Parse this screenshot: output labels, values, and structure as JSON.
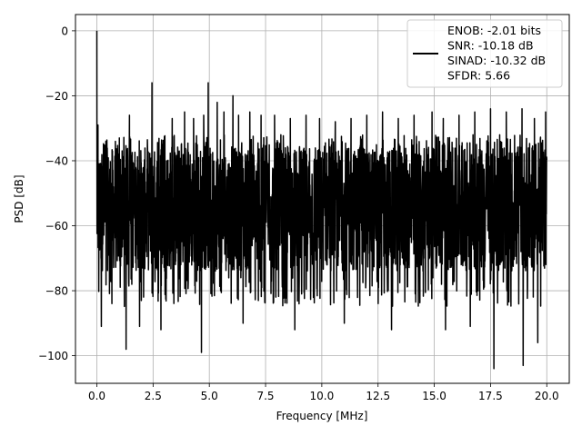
{
  "chart_data": {
    "type": "line",
    "title": "",
    "xlabel": "Frequency [MHz]",
    "ylabel": "PSD [dB]",
    "xlim": [
      -0.95,
      21.0
    ],
    "ylim": [
      -108.5,
      5.0
    ],
    "x_ticks": [
      0.0,
      2.5,
      5.0,
      7.5,
      10.0,
      12.5,
      15.0,
      17.5,
      20.0
    ],
    "x_tick_labels": [
      "0.0",
      "2.5",
      "5.0",
      "7.5",
      "10.0",
      "12.5",
      "15.0",
      "17.5",
      "20.0"
    ],
    "y_ticks": [
      0,
      -20,
      -40,
      -60,
      -80,
      -100
    ],
    "y_tick_labels": [
      "0",
      "−20",
      "−40",
      "−60",
      "−80",
      "−100"
    ],
    "grid": true,
    "legend_position": "top-right",
    "line_color": "#000000",
    "series": [
      {
        "name": "ENOB: -2.01 bits\nSNR: -10.18 dB\nSINAD: -10.32 dB\nSFDR: 5.66",
        "x_range": [
          0.0,
          20.0
        ],
        "band_top": -36,
        "band_bottom": -74,
        "peaks": [
          {
            "x": 0.0,
            "y": 0.0
          },
          {
            "x": 0.05,
            "y": -29
          },
          {
            "x": 0.4,
            "y": -34
          },
          {
            "x": 1.0,
            "y": -33
          },
          {
            "x": 1.45,
            "y": -26
          },
          {
            "x": 1.9,
            "y": -25
          },
          {
            "x": 2.45,
            "y": -16
          },
          {
            "x": 2.85,
            "y": -28
          },
          {
            "x": 3.35,
            "y": -27
          },
          {
            "x": 3.9,
            "y": -25
          },
          {
            "x": 4.3,
            "y": -27
          },
          {
            "x": 4.75,
            "y": -26
          },
          {
            "x": 4.95,
            "y": -16
          },
          {
            "x": 5.35,
            "y": -22
          },
          {
            "x": 5.65,
            "y": -25
          },
          {
            "x": 6.05,
            "y": -20
          },
          {
            "x": 6.3,
            "y": -26
          },
          {
            "x": 6.8,
            "y": -25
          },
          {
            "x": 7.3,
            "y": -26
          },
          {
            "x": 7.9,
            "y": -26
          },
          {
            "x": 8.6,
            "y": -27
          },
          {
            "x": 9.3,
            "y": -26
          },
          {
            "x": 9.9,
            "y": -27
          },
          {
            "x": 10.6,
            "y": -28
          },
          {
            "x": 11.3,
            "y": -27
          },
          {
            "x": 12.0,
            "y": -26
          },
          {
            "x": 12.7,
            "y": -25
          },
          {
            "x": 13.4,
            "y": -27
          },
          {
            "x": 14.1,
            "y": -26
          },
          {
            "x": 14.9,
            "y": -25
          },
          {
            "x": 15.4,
            "y": -27
          },
          {
            "x": 16.1,
            "y": -26
          },
          {
            "x": 16.8,
            "y": -25
          },
          {
            "x": 17.5,
            "y": -24
          },
          {
            "x": 18.2,
            "y": -25
          },
          {
            "x": 18.9,
            "y": -24
          },
          {
            "x": 19.45,
            "y": -27
          },
          {
            "x": 19.95,
            "y": -25
          }
        ],
        "dips": [
          {
            "x": 0.2,
            "y": -91
          },
          {
            "x": 1.3,
            "y": -98
          },
          {
            "x": 1.9,
            "y": -91
          },
          {
            "x": 2.85,
            "y": -92
          },
          {
            "x": 4.65,
            "y": -99
          },
          {
            "x": 6.5,
            "y": -90
          },
          {
            "x": 8.8,
            "y": -92
          },
          {
            "x": 11.0,
            "y": -90
          },
          {
            "x": 13.1,
            "y": -92
          },
          {
            "x": 15.5,
            "y": -92
          },
          {
            "x": 16.6,
            "y": -91
          },
          {
            "x": 17.65,
            "y": -104
          },
          {
            "x": 18.95,
            "y": -103
          },
          {
            "x": 19.6,
            "y": -96
          }
        ]
      }
    ]
  }
}
